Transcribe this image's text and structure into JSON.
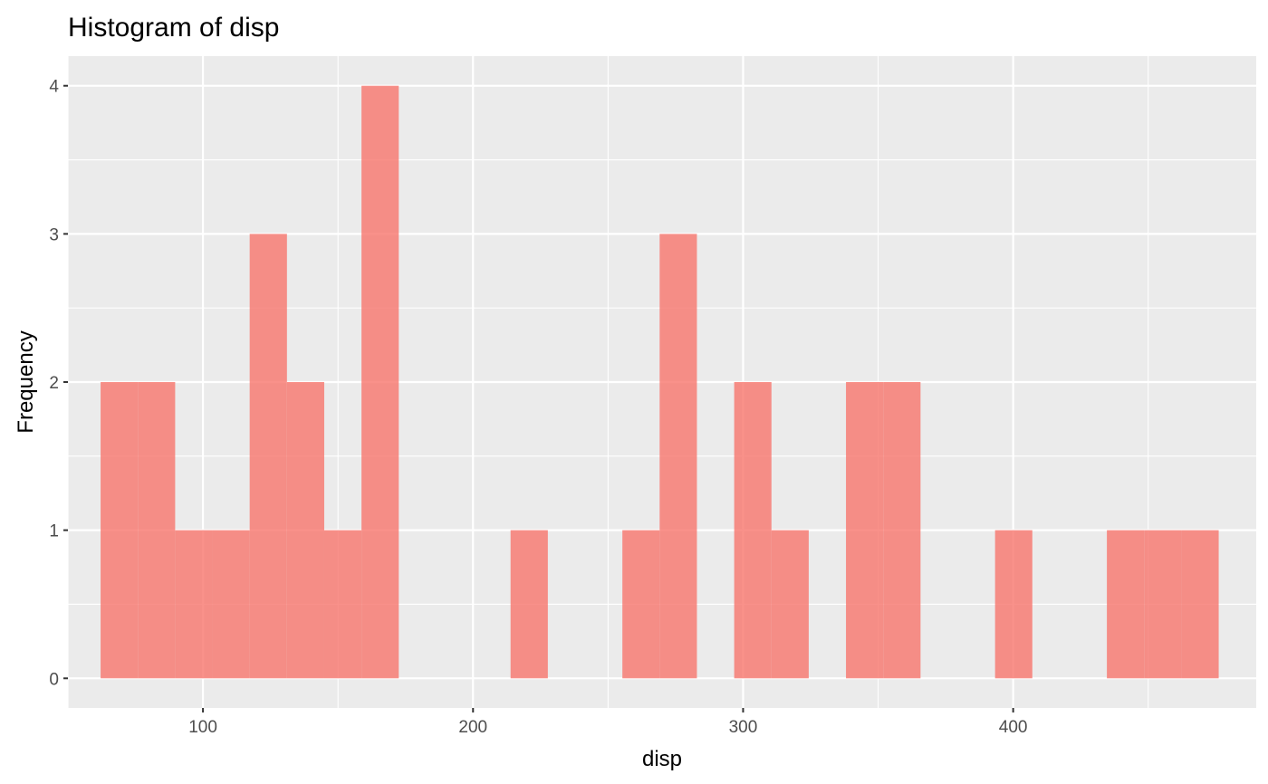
{
  "chart_data": {
    "type": "bar",
    "title": "Histogram of disp",
    "xlabel": "disp",
    "ylabel": "Frequency",
    "xlim": [
      50,
      490
    ],
    "ylim": [
      -0.2,
      4.2
    ],
    "x_ticks": [
      100,
      200,
      300,
      400
    ],
    "x_tick_labels": [
      "100",
      "200",
      "300",
      "400"
    ],
    "y_ticks": [
      0,
      1,
      2,
      3,
      4
    ],
    "y_tick_labels": [
      "0",
      "1",
      "2",
      "3",
      "4"
    ],
    "bin_width": 13.8,
    "bins": [
      {
        "start": 62.1,
        "end": 75.9,
        "count": 2
      },
      {
        "start": 75.9,
        "end": 89.7,
        "count": 2
      },
      {
        "start": 89.7,
        "end": 103.5,
        "count": 1
      },
      {
        "start": 103.5,
        "end": 117.3,
        "count": 1
      },
      {
        "start": 117.3,
        "end": 131.1,
        "count": 3
      },
      {
        "start": 131.1,
        "end": 144.9,
        "count": 2
      },
      {
        "start": 144.9,
        "end": 158.7,
        "count": 1
      },
      {
        "start": 158.7,
        "end": 172.5,
        "count": 4
      },
      {
        "start": 172.5,
        "end": 186.3,
        "count": 0
      },
      {
        "start": 186.3,
        "end": 200.1,
        "count": 0
      },
      {
        "start": 200.1,
        "end": 213.9,
        "count": 0
      },
      {
        "start": 213.9,
        "end": 227.7,
        "count": 1
      },
      {
        "start": 227.7,
        "end": 241.5,
        "count": 0
      },
      {
        "start": 241.5,
        "end": 255.3,
        "count": 0
      },
      {
        "start": 255.3,
        "end": 269.1,
        "count": 1
      },
      {
        "start": 269.1,
        "end": 282.9,
        "count": 3
      },
      {
        "start": 282.9,
        "end": 296.7,
        "count": 0
      },
      {
        "start": 296.7,
        "end": 310.5,
        "count": 2
      },
      {
        "start": 310.5,
        "end": 324.3,
        "count": 1
      },
      {
        "start": 324.3,
        "end": 338.1,
        "count": 0
      },
      {
        "start": 338.1,
        "end": 351.9,
        "count": 2
      },
      {
        "start": 351.9,
        "end": 365.7,
        "count": 2
      },
      {
        "start": 365.7,
        "end": 379.5,
        "count": 0
      },
      {
        "start": 379.5,
        "end": 393.3,
        "count": 0
      },
      {
        "start": 393.3,
        "end": 407.1,
        "count": 1
      },
      {
        "start": 407.1,
        "end": 420.9,
        "count": 0
      },
      {
        "start": 420.9,
        "end": 434.7,
        "count": 0
      },
      {
        "start": 434.7,
        "end": 448.5,
        "count": 1
      },
      {
        "start": 448.5,
        "end": 462.3,
        "count": 1
      },
      {
        "start": 462.3,
        "end": 476.1,
        "count": 1
      }
    ],
    "grid": true,
    "legend": "none",
    "colors": {
      "bar_fill": "#f8766d",
      "panel_background": "#ebebeb",
      "grid": "#ffffff"
    }
  }
}
